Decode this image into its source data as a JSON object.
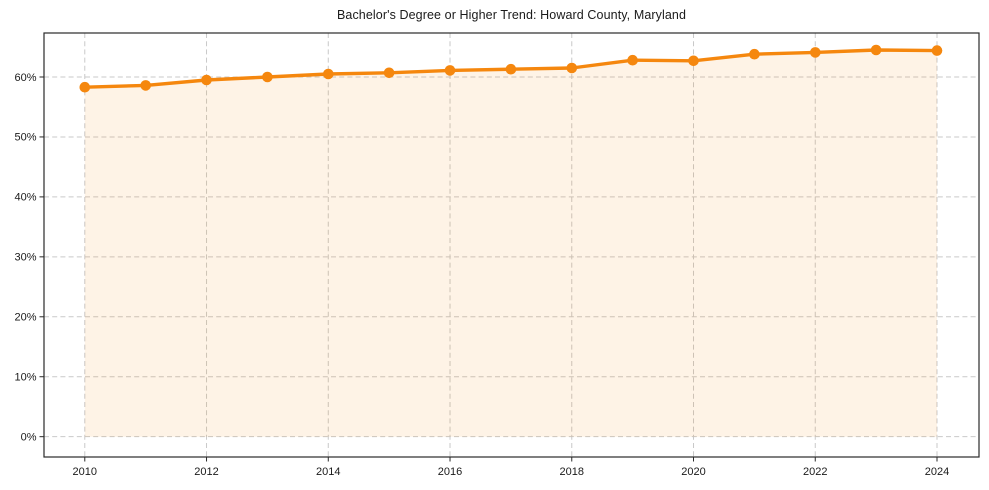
{
  "chart_data": {
    "type": "line",
    "title": "Bachelor's Degree or Higher Trend: Howard County, Maryland",
    "xlabel": "",
    "ylabel": "",
    "x": [
      2010,
      2011,
      2012,
      2013,
      2014,
      2015,
      2016,
      2017,
      2018,
      2019,
      2020,
      2021,
      2022,
      2023,
      2024
    ],
    "values": [
      58.3,
      58.6,
      59.5,
      60.0,
      60.5,
      60.7,
      61.1,
      61.3,
      61.5,
      62.8,
      62.7,
      63.8,
      64.1,
      64.5,
      64.4
    ],
    "unit": "%",
    "xticks": [
      2010,
      2012,
      2014,
      2016,
      2018,
      2020,
      2022,
      2024
    ],
    "yticks": [
      0,
      10,
      20,
      30,
      40,
      50,
      60
    ],
    "ytick_suffix": "%",
    "xlim": [
      2009.33,
      2024.69
    ],
    "ylim": [
      -3.39,
      67.34
    ],
    "grid": true,
    "grid_style": "dashed",
    "legend": false,
    "fill_to_zero": true,
    "marker_radius": 5.3,
    "line_width": 3.4,
    "colors": {
      "line": "#F5870E",
      "marker": "#F5870E",
      "fill": "rgba(245,135,14,0.10)",
      "grid": "#C9C9C9",
      "axis_border": "#2A2A2A",
      "tick": "#2A2A2A",
      "tick_label": "#1A1A1A",
      "title": "#1A1A1A",
      "background": "#FFFFFF"
    }
  }
}
